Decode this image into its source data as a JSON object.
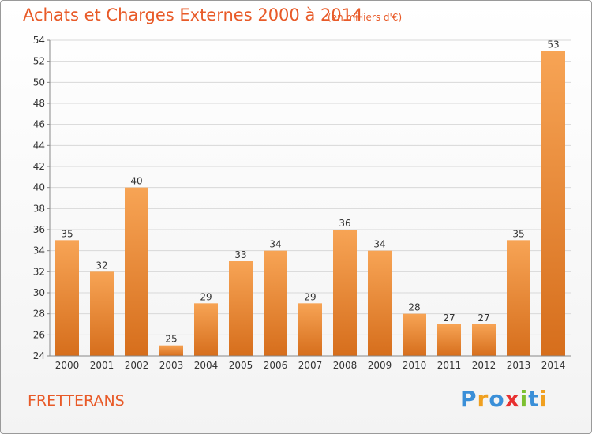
{
  "header": {
    "title": "Achats et Charges Externes 2000 à 2014",
    "subtitle": "(en milliers d'€)"
  },
  "footer": {
    "commune": "FRETTERANS",
    "brand": "Proxiti"
  },
  "colors": {
    "title": "#e85a28",
    "bar_light": "#f7a455",
    "bar_dark": "#d66e1c",
    "grid": "#d8d8d8"
  },
  "chart_data": {
    "type": "bar",
    "categories": [
      "2000",
      "2001",
      "2002",
      "2003",
      "2004",
      "2005",
      "2006",
      "2007",
      "2008",
      "2009",
      "2010",
      "2011",
      "2012",
      "2013",
      "2014"
    ],
    "values": [
      35,
      32,
      40,
      25,
      29,
      33,
      34,
      29,
      36,
      34,
      28,
      27,
      27,
      35,
      53
    ],
    "title": "Achats et Charges Externes 2000 à 2014",
    "subtitle": "(en milliers d'€)",
    "xlabel": "",
    "ylabel": "",
    "ylim": [
      24,
      54
    ],
    "yticks": [
      24,
      26,
      28,
      30,
      32,
      34,
      36,
      38,
      40,
      42,
      44,
      46,
      48,
      50,
      52,
      54
    ],
    "grid": true,
    "data_labels": true
  }
}
